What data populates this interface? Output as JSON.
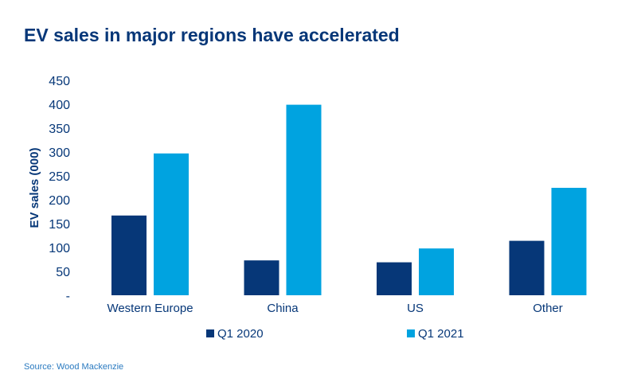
{
  "chart_data": {
    "type": "bar",
    "title": "EV sales in major regions have accelerated",
    "ylabel": "EV sales (000)",
    "xlabel": "",
    "ylim": [
      0,
      450
    ],
    "yticks": [
      0,
      50,
      100,
      150,
      200,
      250,
      300,
      350,
      400,
      450
    ],
    "ytick_labels": [
      "-",
      "50",
      "100",
      "150",
      "200",
      "250",
      "300",
      "350",
      "400",
      "450"
    ],
    "categories": [
      "Western Europe",
      "China",
      "US",
      "Other"
    ],
    "series": [
      {
        "name": "Q1 2020",
        "color": "#063778",
        "values": [
          167,
          73,
          69,
          114
        ]
      },
      {
        "name": "Q1 2021",
        "color": "#00a3e0",
        "values": [
          297,
          399,
          98,
          225
        ]
      }
    ],
    "grid": false,
    "legend_position": "bottom"
  },
  "source": "Source: Wood Mackenzie"
}
